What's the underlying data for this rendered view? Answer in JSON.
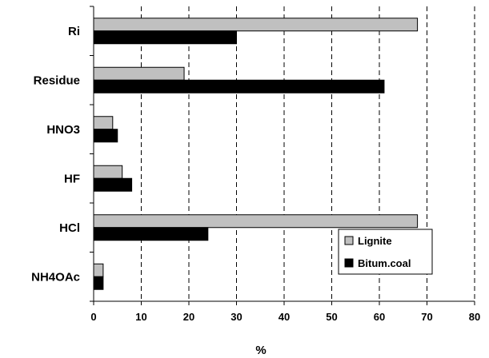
{
  "chart_data": {
    "type": "bar",
    "orientation": "horizontal",
    "title": "",
    "xlabel": "%",
    "ylabel": "",
    "xlim": [
      0,
      80
    ],
    "xticks": [
      0,
      10,
      20,
      30,
      40,
      50,
      60,
      70,
      80
    ],
    "grid": "vertical-dashed",
    "legend_position": "lower-right",
    "categories": [
      "Ri",
      "Residue",
      "HNO3",
      "HF",
      "HCl",
      "NH4OAc"
    ],
    "series": [
      {
        "name": "Lignite",
        "color": "#c0c0c0",
        "values": [
          68,
          19,
          4,
          6,
          68,
          2
        ]
      },
      {
        "name": "Bitum.coal",
        "color": "#000000",
        "values": [
          30,
          61,
          5,
          8,
          24,
          2
        ]
      }
    ]
  }
}
